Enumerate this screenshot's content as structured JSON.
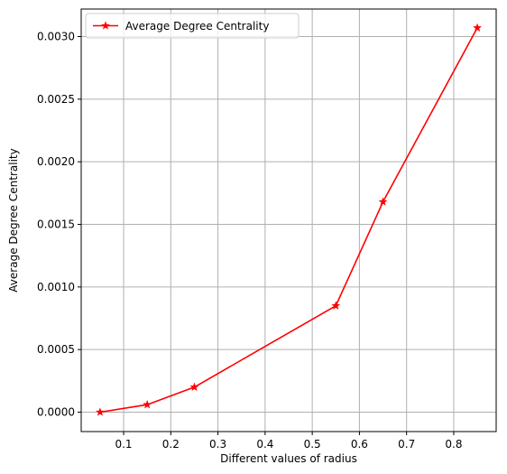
{
  "chart_data": {
    "type": "line",
    "title": "",
    "xlabel": "Different values of radius",
    "ylabel": "Average Degree Centrality",
    "xlim": [
      0.01,
      0.89
    ],
    "ylim": [
      -0.000155,
      0.00322
    ],
    "xticks": [
      0.1,
      0.2,
      0.3,
      0.4,
      0.5,
      0.6,
      0.7,
      0.8
    ],
    "xtick_labels": [
      "0.1",
      "0.2",
      "0.3",
      "0.4",
      "0.5",
      "0.6",
      "0.7",
      "0.8"
    ],
    "yticks": [
      0.0,
      0.0005,
      0.001,
      0.0015,
      0.002,
      0.0025,
      0.003
    ],
    "ytick_labels": [
      "0.0000",
      "0.0005",
      "0.0010",
      "0.0015",
      "0.0020",
      "0.0025",
      "0.0030"
    ],
    "grid": true,
    "legend_position": "top-left",
    "series": [
      {
        "name": "Average Degree Centrality",
        "color": "#ff0000",
        "marker": "star",
        "x": [
          0.05,
          0.15,
          0.25,
          0.55,
          0.65,
          0.85
        ],
        "y": [
          0.0,
          6e-05,
          0.0002,
          0.00085,
          0.00168,
          0.00307
        ]
      }
    ]
  }
}
